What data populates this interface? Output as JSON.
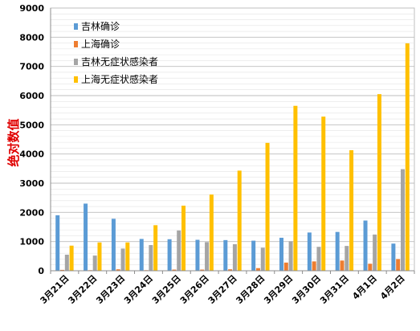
{
  "chart_data": {
    "type": "bar",
    "title": "",
    "xlabel": "",
    "ylabel": "绝对数值",
    "ylim": [
      0,
      9000
    ],
    "yticks": [
      0,
      1000,
      2000,
      3000,
      4000,
      5000,
      6000,
      7000,
      8000,
      9000
    ],
    "grid": true,
    "legend_position": "top-left",
    "categories": [
      "3月21日",
      "3月22日",
      "3月23日",
      "3月24日",
      "3月25日",
      "3月26日",
      "3月27日",
      "3月28日",
      "3月29日",
      "3月30日",
      "3月31日",
      "4月1日",
      "4月2日"
    ],
    "series": [
      {
        "name": "吉林确诊",
        "color": "#5b9bd5",
        "values": [
          1900,
          2300,
          1780,
          1090,
          1080,
          1060,
          1050,
          1030,
          1130,
          1310,
          1330,
          1720,
          930
        ]
      },
      {
        "name": "上海确诊",
        "color": "#ed7d31",
        "values": [
          30,
          20,
          50,
          20,
          40,
          40,
          50,
          90,
          280,
          320,
          350,
          240,
          400
        ]
      },
      {
        "name": "吉林无症状感染者",
        "color": "#a5a5a5",
        "values": [
          550,
          520,
          760,
          880,
          1380,
          980,
          910,
          790,
          1010,
          820,
          850,
          1240,
          3480
        ]
      },
      {
        "name": "上海无症状感染者",
        "color": "#ffc000",
        "values": [
          860,
          970,
          970,
          1560,
          2230,
          2610,
          3430,
          4380,
          5650,
          5280,
          4130,
          6050,
          7790
        ]
      }
    ]
  }
}
